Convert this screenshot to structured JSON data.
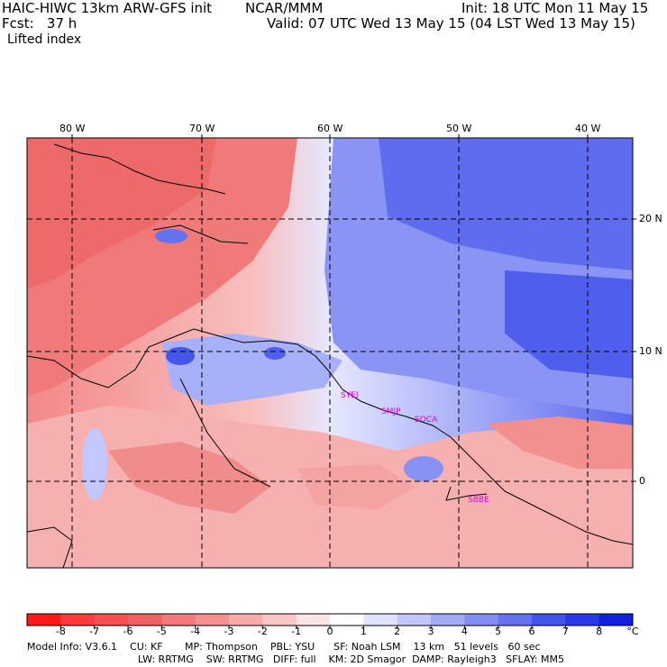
{
  "header": {
    "model": "HAIC-HIWC 13km ARW-GFS init",
    "org": "NCAR/MMM",
    "init": "Init: 18 UTC Mon 11 May 15",
    "fcst": "Fcst:   37 h",
    "valid": "Valid: 07 UTC Wed 13 May 15 (04 LST Wed 13 May 15)",
    "field": "Lifted index"
  },
  "axes": {
    "lon_labels": [
      "80 W",
      "70 W",
      "60 W",
      "50 W",
      "40 W"
    ],
    "lat_labels": [
      "20 N",
      "10 N",
      "0"
    ]
  },
  "stations": [
    "SYEJ",
    "SMJP",
    "SOCA",
    "SBBE"
  ],
  "colorbar": {
    "labels": [
      "-8",
      "-7",
      "-6",
      "-5",
      "-4",
      "-3",
      "-2",
      "-1",
      "0",
      "1",
      "2",
      "3",
      "4",
      "5",
      "6",
      "7",
      "8"
    ],
    "unit": "°C",
    "colors": [
      "#ff1a1a",
      "#ff3a3a",
      "#f85050",
      "#f06262",
      "#f27a7a",
      "#f59090",
      "#f9aaaa",
      "#fcc6c6",
      "#ffe4e4",
      "#ffffff",
      "#dfe3ff",
      "#c2c8ff",
      "#a3aaf8",
      "#838ef5",
      "#6472f0",
      "#4455ec",
      "#2a3ae8",
      "#1020e0"
    ]
  },
  "model_info": {
    "line1": "Model Info: V3.6.1    CU: KF       MP: Thompson    PBL: YSU      SF: Noah LSM    13 km   51 levels   60 sec",
    "line2": "LW: RRTMG    SW: RRTMG   DIFF: full    KM: 2D Smagor  DAMP: Rayleigh3   SFLAY: MM5"
  }
}
